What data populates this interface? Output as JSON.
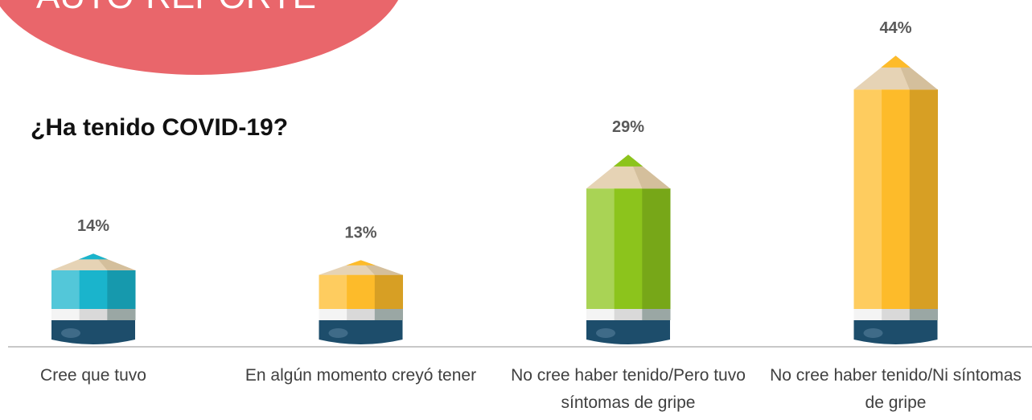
{
  "banner": "AUTO-REPORTE",
  "chart_data": {
    "type": "bar",
    "title": "¿Ha tenido COVID-19?",
    "categories": [
      "Cree que tuvo",
      "En algún momento creyó tener",
      "No cree haber tenido/Pero tuvo síntomas de gripe",
      "No cree haber tenido/Ni síntomas de gripe"
    ],
    "values": [
      14,
      13,
      29,
      44
    ],
    "value_labels": [
      "14%",
      "13%",
      "29%",
      "44%"
    ],
    "colors": [
      "#1ab4cc",
      "#fdbb2a",
      "#8cc41c",
      "#fdbb2a"
    ]
  }
}
